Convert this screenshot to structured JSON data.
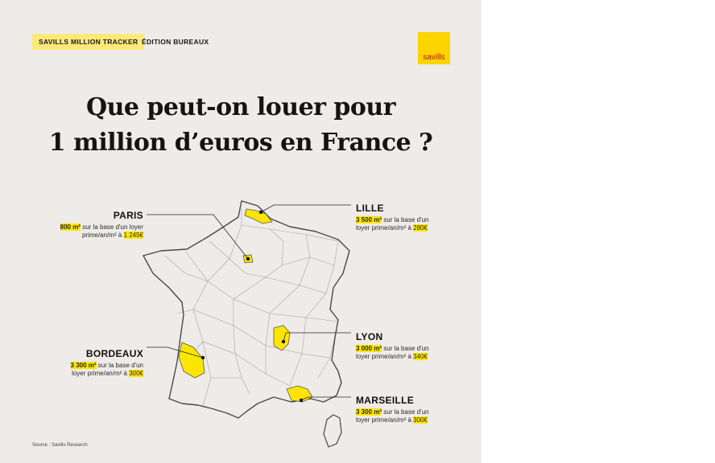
{
  "header": {
    "tag_left": "SAVILLS MILLION TRACKER",
    "tag_right": "ÉDITION BUREAUX",
    "logo": "savills"
  },
  "title": {
    "line1": "Que peut-on louer pour",
    "line2": "1 million d’euros en France ?"
  },
  "cities": {
    "paris": {
      "name": "PARIS",
      "surface": "800 m²",
      "text1": " sur la base d'un loyer",
      "text2": "prime/an/m² à ",
      "rent": "1 245€"
    },
    "lille": {
      "name": "LILLE",
      "surface": "3 500 m²",
      "text1": " sur la base d'un",
      "text2": "loyer prime/an/m² à ",
      "rent": "280€"
    },
    "lyon": {
      "name": "LYON",
      "surface": "3 000 m²",
      "text1": " sur la base d'un",
      "text2": "loyer prime/an/m² à ",
      "rent": "340€"
    },
    "bordeaux": {
      "name": "BORDEAUX",
      "surface": "3 300 m²",
      "text1": " sur la base d'un",
      "text2": "loyer prime/an/m² à ",
      "rent": "300€"
    },
    "marseille": {
      "name": "MARSEILLE",
      "surface": "3 300 m²",
      "text1": " sur la base d'un",
      "text2": "loyer prime/an/m² à ",
      "rent": "300€"
    }
  },
  "footer": {
    "source": "Source : Savills Research"
  },
  "colors": {
    "background": "#eeebe8",
    "highlight": "#fce500",
    "tag": "#fde97b",
    "logo_text": "#b2121c"
  }
}
